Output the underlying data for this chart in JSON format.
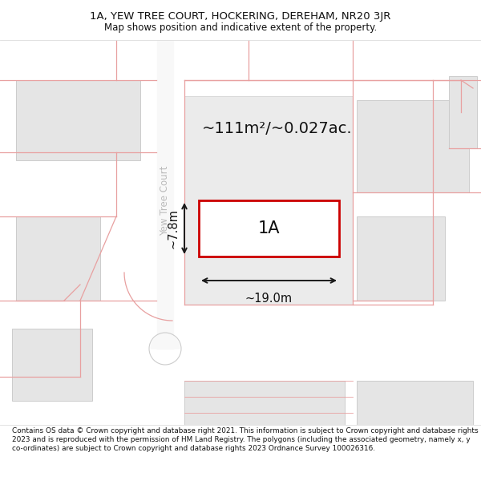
{
  "title_line1": "1A, YEW TREE COURT, HOCKERING, DEREHAM, NR20 3JR",
  "title_line2": "Map shows position and indicative extent of the property.",
  "footer_text": "Contains OS data © Crown copyright and database right 2021. This information is subject to Crown copyright and database rights 2023 and is reproduced with the permission of HM Land Registry. The polygons (including the associated geometry, namely x, y co-ordinates) are subject to Crown copyright and database rights 2023 Ordnance Survey 100026316.",
  "area_label": "~111m²/~0.027ac.",
  "plot_label": "1A",
  "width_label": "~19.0m",
  "height_label": "~7.8m",
  "street_label": "Yew Tree Court",
  "bg_color": "#ffffff",
  "map_bg": "#ffffff",
  "cadastral_color": "#e8a0a0",
  "plot_fill": "#ffffff",
  "plot_stroke": "#cc0000",
  "dim_color": "#1a1a1a",
  "title_color": "#111111",
  "footer_color": "#111111",
  "street_text_color": "#bbbbbb",
  "building_fill": "#e5e5e5",
  "building_edge": "#cccccc"
}
